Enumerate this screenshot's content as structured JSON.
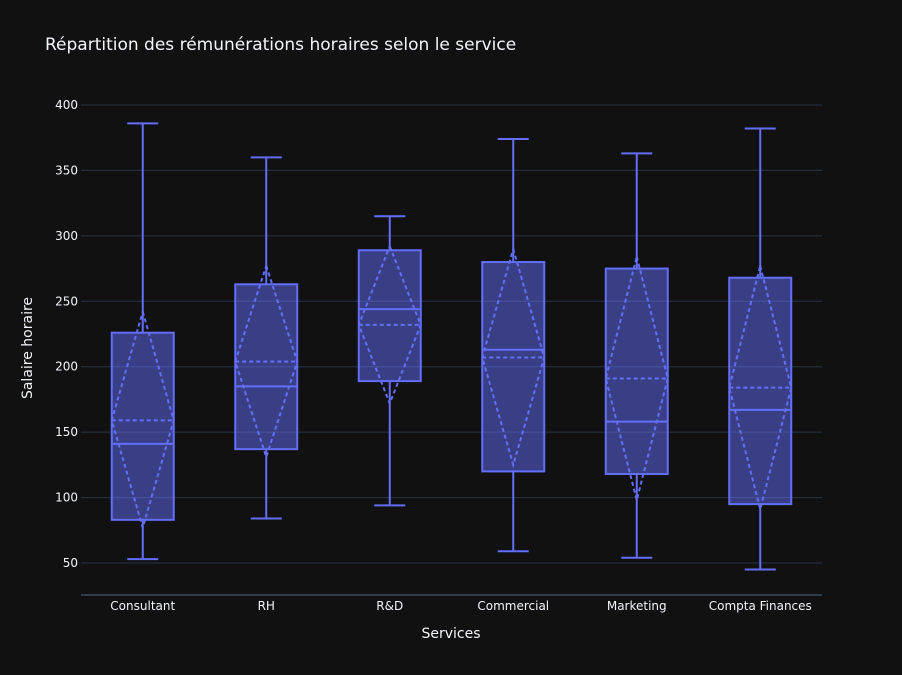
{
  "chart_data": {
    "type": "box",
    "title": "Répartition des rémunérations horaires selon le service",
    "xlabel": "Services",
    "ylabel": "Salaire horaire",
    "ylim": [
      25,
      410
    ],
    "yticks": [
      50,
      100,
      150,
      200,
      250,
      300,
      350,
      400
    ],
    "categories": [
      "Consultant",
      "RH",
      "R&D",
      "Commercial",
      "Marketing",
      "Compta Finances"
    ],
    "boxes": [
      {
        "category": "Consultant",
        "min": 53,
        "q1": 83,
        "median": 141,
        "q3": 226,
        "max": 386,
        "mean": 159,
        "mean_minus_sd": 77,
        "mean_plus_sd": 242
      },
      {
        "category": "RH",
        "min": 84,
        "q1": 137,
        "median": 185,
        "q3": 263,
        "max": 360,
        "mean": 204,
        "mean_minus_sd": 131,
        "mean_plus_sd": 277
      },
      {
        "category": "R&D",
        "min": 94,
        "q1": 189,
        "median": 244,
        "q3": 289,
        "max": 315,
        "mean": 232,
        "mean_minus_sd": 172,
        "mean_plus_sd": 292
      },
      {
        "category": "Commercial",
        "min": 59,
        "q1": 120,
        "median": 213,
        "q3": 280,
        "max": 374,
        "mean": 207,
        "mean_minus_sd": 125,
        "mean_plus_sd": 290
      },
      {
        "category": "Marketing",
        "min": 54,
        "q1": 118,
        "median": 158,
        "q3": 275,
        "max": 363,
        "mean": 191,
        "mean_minus_sd": 98,
        "mean_plus_sd": 284
      },
      {
        "category": "Compta Finances",
        "min": 45,
        "q1": 95,
        "median": 167,
        "q3": 268,
        "max": 382,
        "mean": 184,
        "mean_minus_sd": 91,
        "mean_plus_sd": 277
      }
    ],
    "grid": true,
    "colors": {
      "background": "#111111",
      "grid": "#283442",
      "box_line": "#636efa",
      "box_fill": "rgba(99,110,250,0.5)",
      "text": "#f2f5fa"
    }
  }
}
